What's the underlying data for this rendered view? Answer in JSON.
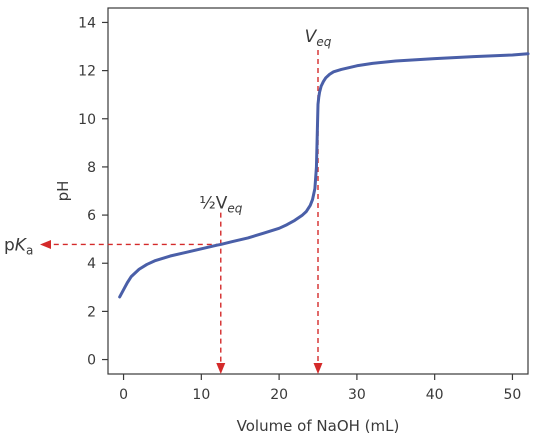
{
  "chart_data": {
    "type": "line",
    "title": "",
    "xlabel": "Volume of NaOH (mL)",
    "ylabel": "pH",
    "xlim": [
      -2,
      52
    ],
    "ylim": [
      -0.6,
      14.6
    ],
    "xticks": [
      "0",
      "10",
      "20",
      "30",
      "40",
      "50"
    ],
    "yticks": [
      "0",
      "2",
      "4",
      "6",
      "8",
      "10",
      "12",
      "14"
    ],
    "grid": false,
    "series": [
      {
        "color": "#4a5fa8",
        "x": [
          -0.5,
          0,
          0.5,
          1,
          2,
          3,
          4,
          5,
          6,
          8,
          10,
          12,
          12.5,
          14,
          16,
          18,
          20,
          21,
          22,
          23,
          23.5,
          24,
          24.3,
          24.6,
          24.8,
          24.9,
          25.0,
          25.1,
          25.2,
          25.4,
          25.7,
          26,
          26.5,
          27,
          28,
          30,
          32,
          35,
          40,
          45,
          50,
          52
        ],
        "y": [
          2.6,
          2.9,
          3.2,
          3.45,
          3.75,
          3.95,
          4.1,
          4.2,
          4.3,
          4.45,
          4.6,
          4.75,
          4.78,
          4.9,
          5.05,
          5.25,
          5.45,
          5.6,
          5.78,
          6.0,
          6.15,
          6.4,
          6.65,
          7.1,
          8.0,
          9.3,
          10.6,
          10.9,
          11.1,
          11.35,
          11.55,
          11.7,
          11.85,
          11.95,
          12.05,
          12.2,
          12.3,
          12.4,
          12.5,
          12.58,
          12.65,
          12.7
        ]
      }
    ],
    "annotations": {
      "veq_prefix": "V",
      "veq_sub": "eq",
      "half_prefix": "½V",
      "half_sub": "eq",
      "pka_prefix": "p",
      "pka_italic": "K",
      "pka_sub": "a",
      "veq_x": 25,
      "half_veq_x": 12.5,
      "pka_y": 4.78,
      "marker_color": "#d42a2a"
    }
  }
}
